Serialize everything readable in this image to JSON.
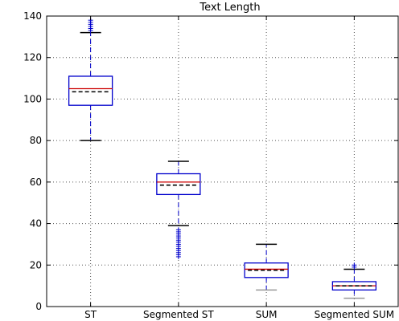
{
  "chart_data": {
    "type": "boxplot",
    "title": "Text Length",
    "xlabel": "",
    "ylabel": "",
    "ylim": [
      0,
      140
    ],
    "yticks": [
      0,
      20,
      40,
      60,
      80,
      100,
      120,
      140
    ],
    "grid": true,
    "categories": [
      "ST",
      "Segmented ST",
      "SUM",
      "Segmented SUM"
    ],
    "boxes": [
      {
        "label": "ST",
        "whisker_low": 80,
        "q1": 97,
        "median": 105,
        "mean": 103.5,
        "q3": 111,
        "whisker_high": 132,
        "outliers": [
          133,
          134,
          135,
          136,
          137,
          138
        ]
      },
      {
        "label": "Segmented ST",
        "whisker_low": 39,
        "q1": 54,
        "median": 60,
        "mean": 58.5,
        "q3": 64,
        "whisker_high": 70,
        "outliers": [
          24,
          25,
          26,
          27,
          28,
          29,
          30,
          31,
          32,
          33,
          34,
          35,
          36,
          37
        ]
      },
      {
        "label": "SUM",
        "whisker_low": 8,
        "q1": 14,
        "median": 18,
        "mean": 17.5,
        "q3": 21,
        "whisker_high": 30,
        "outliers": []
      },
      {
        "label": "Segmented SUM",
        "whisker_low": 4,
        "q1": 8,
        "median": 10,
        "mean": 10,
        "q3": 12,
        "whisker_high": 18,
        "outliers": [
          19,
          20
        ]
      }
    ],
    "colors": {
      "box": "#0000cc",
      "median": "#cc0000",
      "mean": "#000000",
      "whisker": "#0000cc",
      "cap_high": "#000000",
      "cap_low": "#000000",
      "cap_low_light": "#999999",
      "outlier": "#0000cc",
      "grid": "#555555"
    }
  }
}
